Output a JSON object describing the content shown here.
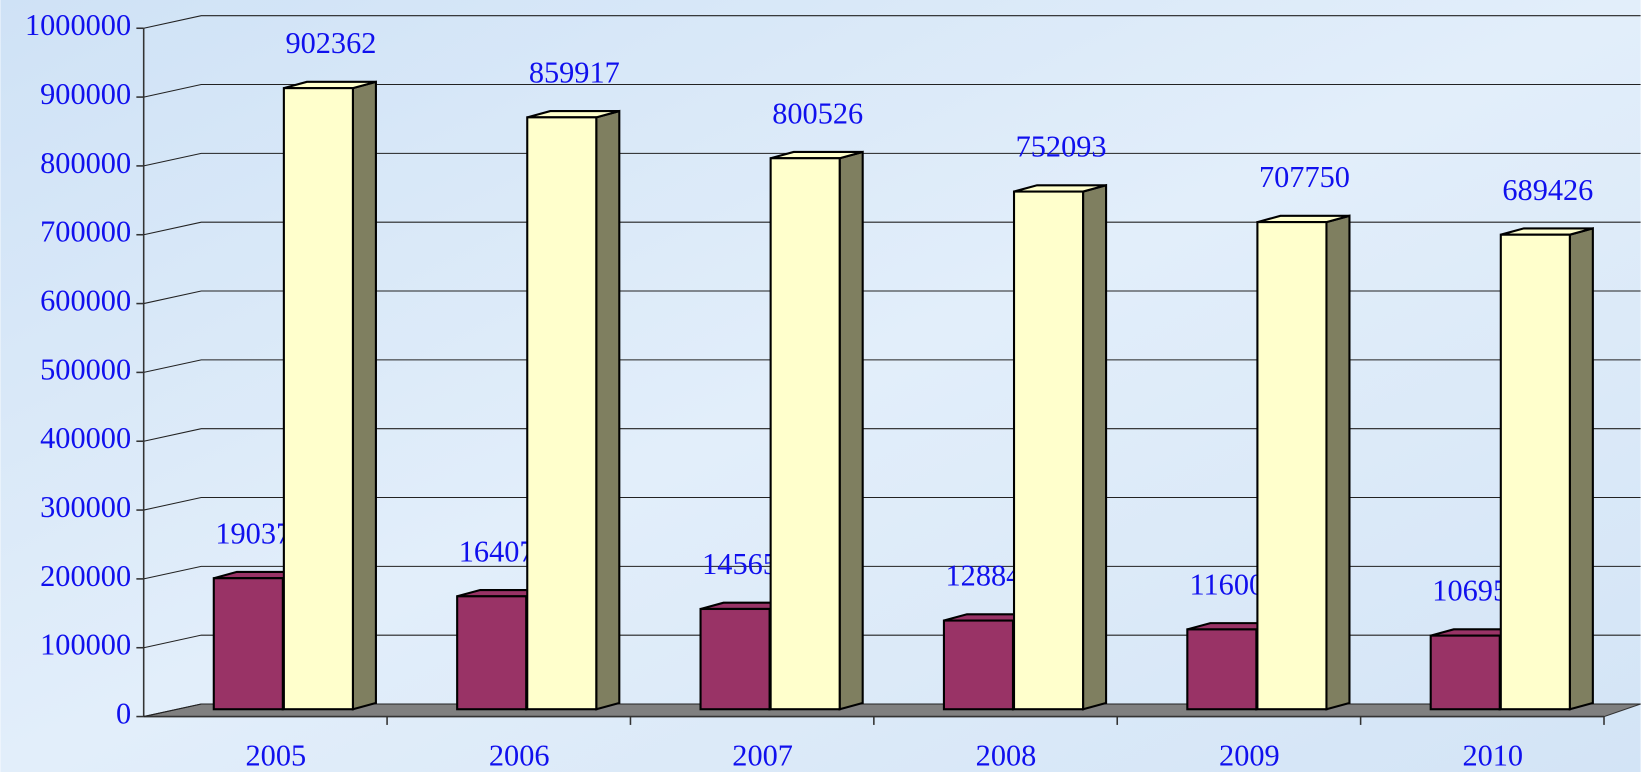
{
  "chart_data": {
    "type": "bar3d",
    "categories": [
      "2005",
      "2006",
      "2007",
      "2008",
      "2009",
      "2010"
    ],
    "series": [
      {
        "color": "#993366",
        "values": [
          190373,
          164077,
          145659,
          128842,
          116006,
          106957
        ]
      },
      {
        "color": "#ffffcc",
        "values": [
          902362,
          859917,
          800526,
          752093,
          707750,
          689426
        ]
      }
    ],
    "ylim": [
      0,
      1000000
    ],
    "yticks": [
      0,
      100000,
      200000,
      300000,
      400000,
      500000,
      600000,
      700000,
      800000,
      900000,
      1000000
    ],
    "grid": true
  }
}
